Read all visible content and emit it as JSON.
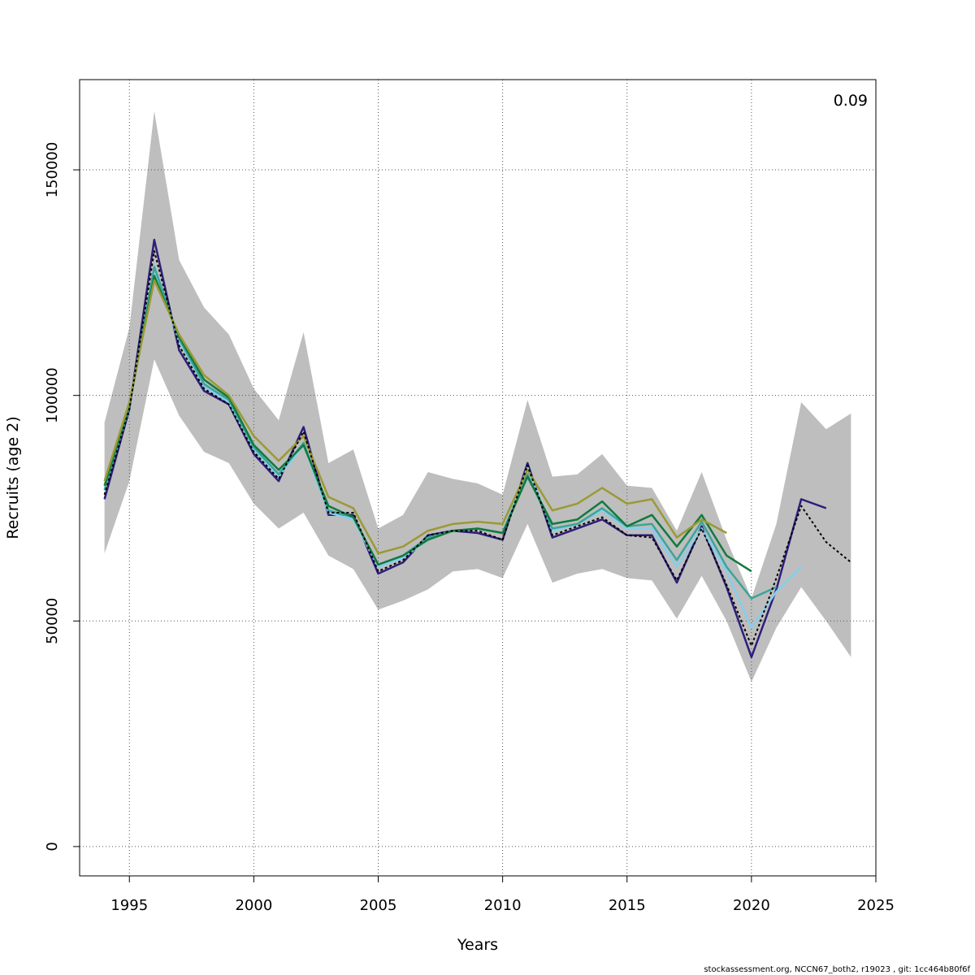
{
  "chart_data": {
    "type": "line",
    "title": "",
    "xlabel": "Years",
    "ylabel": "Recruits (age 2)",
    "annotation": "0.09",
    "footer": "stockassessment.org, NCCN67_both2, r19023 , git: 1cc464b80f6f",
    "xlim": [
      1993,
      2025
    ],
    "ylim": [
      -6500,
      170000
    ],
    "x_ticks": [
      1995,
      2000,
      2005,
      2010,
      2015,
      2020,
      2025
    ],
    "x_tick_labels": [
      "1995",
      "2000",
      "2005",
      "2010",
      "2015",
      "2020",
      "2025"
    ],
    "y_ticks": [
      0,
      50000,
      100000,
      150000
    ],
    "y_tick_labels": [
      "0",
      "50000",
      "100000",
      "150000"
    ],
    "grid": true,
    "confidence_band": {
      "years": [
        1994,
        1995,
        1996,
        1997,
        1998,
        1999,
        2000,
        2001,
        2002,
        2003,
        2004,
        2005,
        2006,
        2007,
        2008,
        2009,
        2010,
        2011,
        2012,
        2013,
        2014,
        2015,
        2016,
        2017,
        2018,
        2019,
        2020,
        2021,
        2022,
        2023,
        2024
      ],
      "lower": [
        65000,
        81000,
        108000,
        95500,
        87500,
        85000,
        76000,
        70500,
        74000,
        64500,
        61500,
        52500,
        54500,
        57000,
        61000,
        61500,
        59500,
        71500,
        58500,
        60500,
        61500,
        59500,
        59000,
        50500,
        60000,
        50000,
        36500,
        48500,
        57500,
        50000,
        42000
      ],
      "upper": [
        94000,
        115000,
        163000,
        130000,
        119500,
        113500,
        101500,
        94500,
        114000,
        85000,
        88000,
        70500,
        73500,
        83000,
        81500,
        80500,
        78000,
        99000,
        82000,
        82500,
        87000,
        80000,
        79500,
        70000,
        83000,
        68000,
        55000,
        71500,
        98500,
        92500,
        96000
      ],
      "color": "#bebebe"
    },
    "series": [
      {
        "color": "#000000",
        "dashed": true,
        "years": [
          1994,
          1995,
          1996,
          1997,
          1998,
          1999,
          2000,
          2001,
          2002,
          2003,
          2004,
          2005,
          2006,
          2007,
          2008,
          2009,
          2010,
          2011,
          2012,
          2013,
          2014,
          2015,
          2016,
          2017,
          2018,
          2019,
          2020,
          2021,
          2022,
          2023,
          2024
        ],
        "values": [
          78000,
          97000,
          132000,
          111000,
          101500,
          98000,
          87500,
          81500,
          92000,
          74000,
          74000,
          61000,
          63500,
          69000,
          70000,
          70000,
          68000,
          84500,
          69000,
          71000,
          73000,
          69000,
          68500,
          59000,
          70500,
          58000,
          44500,
          59500,
          75500,
          67500,
          63000
        ]
      },
      {
        "color": "#2e1e7a",
        "dashed": false,
        "years": [
          1994,
          1995,
          1996,
          1997,
          1998,
          1999,
          2000,
          2001,
          2002,
          2003,
          2004,
          2005,
          2006,
          2007,
          2008,
          2009,
          2010,
          2011,
          2012,
          2013,
          2014,
          2015,
          2016,
          2017,
          2018,
          2019,
          2020,
          2021,
          2022,
          2023
        ],
        "values": [
          77000,
          97000,
          134500,
          110000,
          101000,
          98000,
          87000,
          81000,
          93000,
          73500,
          73500,
          60500,
          63000,
          69000,
          70000,
          69500,
          68000,
          85000,
          68500,
          70500,
          72500,
          69000,
          69000,
          58500,
          71000,
          57500,
          42000,
          57000,
          77000,
          75000
        ]
      },
      {
        "color": "#87ceeb",
        "dashed": false,
        "years": [
          1994,
          1995,
          1996,
          1997,
          1998,
          1999,
          2000,
          2001,
          2002,
          2003,
          2004,
          2005,
          2006,
          2007,
          2008,
          2009,
          2010,
          2011,
          2012,
          2013,
          2014,
          2015,
          2016,
          2017,
          2018,
          2019,
          2020,
          2021,
          2022
        ],
        "values": [
          80000,
          98000,
          128000,
          112000,
          102000,
          98500,
          88000,
          82000,
          89000,
          74000,
          72500,
          62000,
          64000,
          68000,
          70000,
          70500,
          69500,
          84000,
          70000,
          71500,
          74500,
          70500,
          70500,
          62000,
          70500,
          61000,
          48500,
          56500,
          62000
        ]
      },
      {
        "color": "#3aa59a",
        "dashed": false,
        "years": [
          1994,
          1995,
          1996,
          1997,
          1998,
          1999,
          2000,
          2001,
          2002,
          2003,
          2004,
          2005,
          2006,
          2007,
          2008,
          2009,
          2010,
          2011,
          2012,
          2013,
          2014,
          2015,
          2016,
          2017,
          2018,
          2019,
          2020,
          2021
        ],
        "values": [
          79000,
          97500,
          128500,
          112500,
          102500,
          99000,
          88500,
          82500,
          89500,
          74500,
          73000,
          62500,
          64500,
          68500,
          70000,
          70500,
          69500,
          82500,
          70500,
          71500,
          75000,
          71000,
          71500,
          63500,
          72000,
          62000,
          55000,
          57500
        ]
      },
      {
        "color": "#127a3e",
        "dashed": false,
        "years": [
          1994,
          1995,
          1996,
          1997,
          1998,
          1999,
          2000,
          2001,
          2002,
          2003,
          2004,
          2005,
          2006,
          2007,
          2008,
          2009,
          2010,
          2011,
          2012,
          2013,
          2014,
          2015,
          2016,
          2017,
          2018,
          2019,
          2020
        ],
        "values": [
          80000,
          98000,
          126500,
          113000,
          103500,
          99500,
          89000,
          83500,
          89000,
          75500,
          73000,
          62500,
          64500,
          68000,
          70000,
          70500,
          69500,
          82000,
          71500,
          72500,
          76500,
          71000,
          73500,
          66500,
          73500,
          64500,
          61000
        ]
      },
      {
        "color": "#9a9a34",
        "dashed": false,
        "years": [
          1994,
          1995,
          1996,
          1997,
          1998,
          1999,
          2000,
          2001,
          2002,
          2003,
          2004,
          2005,
          2006,
          2007,
          2008,
          2009,
          2010,
          2011,
          2012,
          2013,
          2014,
          2015,
          2016,
          2017,
          2018,
          2019
        ],
        "values": [
          81000,
          98500,
          125500,
          113500,
          104500,
          100000,
          91000,
          85500,
          91000,
          77500,
          75000,
          65000,
          66500,
          70000,
          71500,
          72000,
          71500,
          83500,
          74500,
          76000,
          79500,
          76000,
          77000,
          68500,
          72500,
          69500
        ]
      }
    ]
  }
}
